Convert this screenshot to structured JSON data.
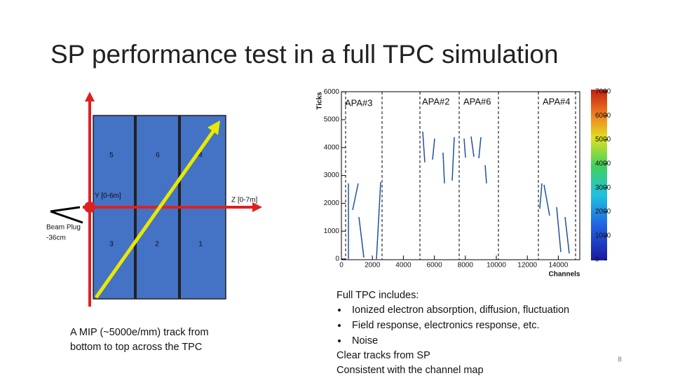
{
  "header": {
    "title": "SP performance test in a full TPC simulation"
  },
  "diagram": {
    "cells": [
      "5",
      "6",
      "4",
      "3",
      "2",
      "1"
    ],
    "y_axis": "Y [0-6m]",
    "z_axis": "Z [0-7m]",
    "beam_plug": [
      "Beam Plug",
      "-36cm"
    ],
    "caption": [
      "A MIP (~5000e/mm) track from",
      "bottom to top across the TPC"
    ]
  },
  "plot": {
    "y_label": "Ticks",
    "x_label": "Channels",
    "apa_labels": [
      "APA#3",
      "APA#2",
      "APA#6",
      "APA#4"
    ],
    "yticks": [
      0,
      1000,
      2000,
      3000,
      4000,
      5000,
      6000
    ],
    "xticks": [
      0,
      2000,
      4000,
      6000,
      8000,
      10000,
      12000,
      14000
    ],
    "colorbar_ticks": [
      0,
      1000,
      2000,
      3000,
      4000,
      5000,
      6000,
      7000
    ]
  },
  "notes": {
    "heading": "Full TPC includes:",
    "bullets": [
      "Ionized electron absorption, diffusion, fluctuation",
      "Field response, electronics response, etc.",
      "Noise"
    ],
    "lines": [
      "Clear tracks from SP",
      "Consistent with the channel map"
    ]
  },
  "page_number": "8"
}
